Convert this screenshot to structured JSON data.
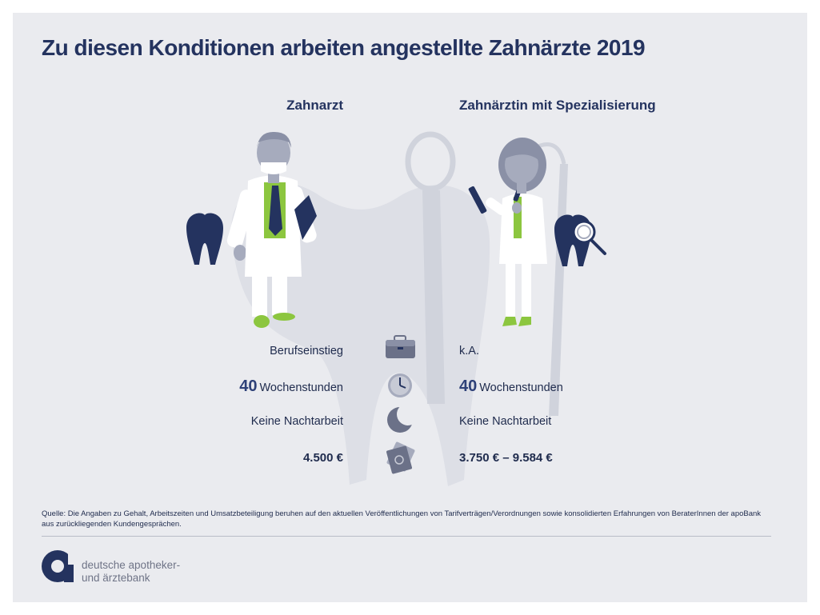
{
  "title": "Zu diesen Konditionen arbeiten angestellte Zahnärzte 2019",
  "columns": {
    "left": "Zahnarzt",
    "right": "Zahnärztin mit Spezialisierung"
  },
  "rows": {
    "entry": {
      "icon": "briefcase-icon",
      "left": "Berufseinstieg",
      "right": "k.A."
    },
    "hours": {
      "icon": "clock-icon",
      "left_value": "40",
      "right_value": "40",
      "unit": "Wochenstunden"
    },
    "night": {
      "icon": "moon-icon",
      "left": "Keine Nachtarbeit",
      "right": "Keine Nachtarbeit"
    },
    "salary": {
      "icon": "money-icon",
      "left": "4.500 €",
      "right": "3.750 € – 9.584 €"
    }
  },
  "source": {
    "line1": "Quelle: Die Angaben zu Gehalt, Arbeitszeiten und Umsatzbeteiligung beruhen auf den aktuellen Veröffentlichungen von Tarifverträgen/Verordnungen sowie konsolidierten Erfahrungen von BeraterInnen der apoBank",
    "line2": "aus zurückliegenden Kundengesprächen."
  },
  "brand": {
    "line1": "deutsche apotheker-",
    "line2": "und ärztebank"
  },
  "colors": {
    "navy": "#24335f",
    "green": "#8cc63f",
    "grey": "#a6abbd",
    "background": "#eaebef"
  }
}
